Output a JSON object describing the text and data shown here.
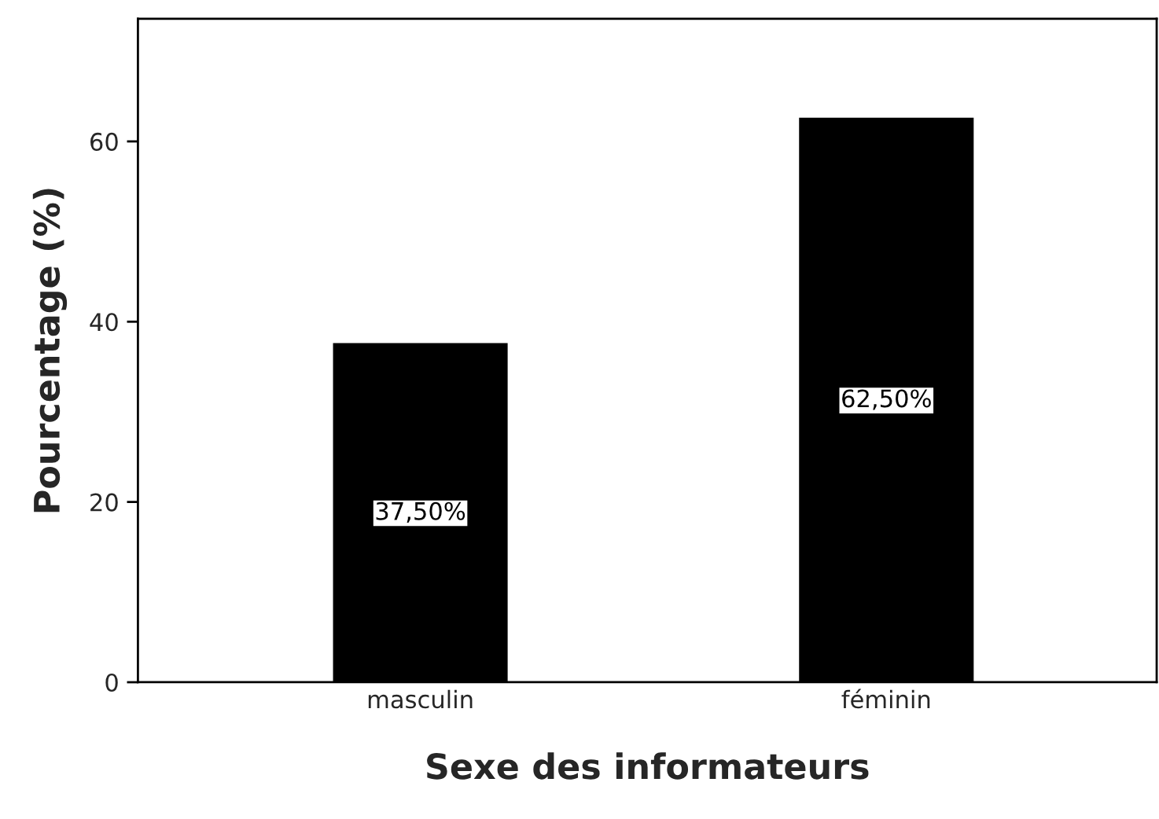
{
  "chart_data": {
    "type": "bar",
    "xlabel": "Sexe des informateurs",
    "ylabel": "Pourcentage (%)",
    "categories": [
      "masculin",
      "féminin"
    ],
    "series": [
      {
        "color": "#000000",
        "values": [
          37.5,
          62.5
        ]
      }
    ],
    "value_labels": [
      "37,50%",
      "62,50%"
    ],
    "ylim": [
      0,
      73.6
    ],
    "yticks": [
      0,
      20,
      40,
      60
    ],
    "grid": false,
    "legend": false
  }
}
